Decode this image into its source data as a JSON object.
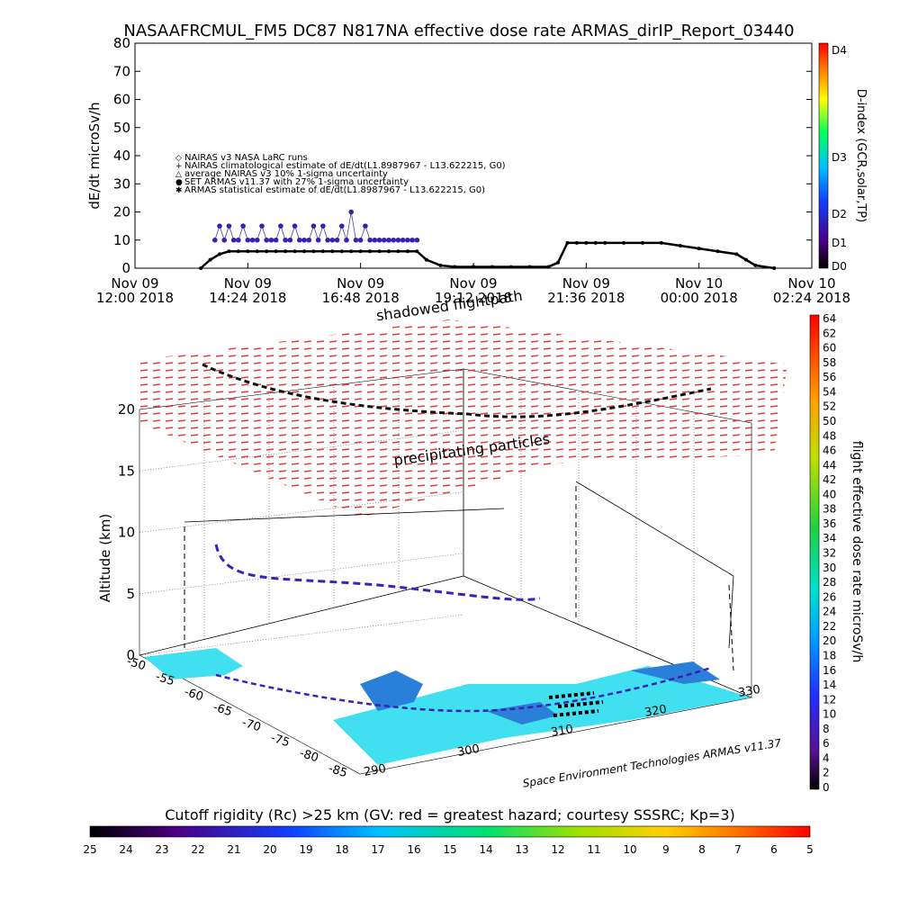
{
  "page": {
    "title": "NASAAFRCMUL_FM5 DC87 N817NA effective dose rate ARMAS_dirIP_Report_03440",
    "credit": "Space Environment Technologies ARMAS v11.37"
  },
  "chart_data": [
    {
      "type": "line",
      "ylabel": "dE/dt microSv/h",
      "ylim": [
        0,
        80
      ],
      "yticks": [
        "80",
        "70",
        "60",
        "50",
        "40",
        "30",
        "20",
        "10",
        "0"
      ],
      "xticks": [
        {
          "line1": "Nov 09",
          "line2": "12:00 2018"
        },
        {
          "line1": "Nov 09",
          "line2": "14:24 2018"
        },
        {
          "line1": "Nov 09",
          "line2": "16:48 2018"
        },
        {
          "line1": "Nov 09",
          "line2": "19:12 2018"
        },
        {
          "line1": "Nov 09",
          "line2": "21:36 2018"
        },
        {
          "line1": "Nov 10",
          "line2": "00:00 2018"
        },
        {
          "line1": "Nov 10",
          "line2": "02:24 2018"
        }
      ],
      "legend": [
        {
          "symbol": "◇",
          "text": "NAIRAS v3 NASA LaRC runs"
        },
        {
          "symbol": "+",
          "text": "NAIRAS climatological estimate of dE/dt(L1.8987967 - L13.622215, G0)"
        },
        {
          "symbol": "△",
          "text": "average NAIRAS v3 10% 1-sigma uncertainty"
        },
        {
          "symbol": "●",
          "text": "SET ARMAS v11.37 with 27% 1-sigma uncertainty"
        },
        {
          "symbol": "✱",
          "text": "ARMAS statistical estimate of dE/dt(L1.8987967 - L13.622215, G0)"
        }
      ],
      "d_index": {
        "label": "D-index (GCR,solar,TP)",
        "ticks": [
          "D4",
          "D3",
          "D2",
          "D1",
          "D0"
        ]
      },
      "series": [
        {
          "name": "SET ARMAS v11.37 with 27% 1-sigma uncertainty",
          "x": [
            1.7,
            1.8,
            1.9,
            2.0,
            2.1,
            2.2,
            2.3,
            2.4,
            2.5,
            2.6,
            2.7,
            2.8,
            2.9,
            3.0,
            3.1,
            3.2,
            3.3,
            3.4,
            3.5,
            3.6,
            3.7,
            3.8,
            3.9,
            4.0,
            4.1,
            4.2,
            4.3,
            4.4,
            4.5,
            4.6,
            4.7,
            4.8,
            4.9,
            5.0,
            5.1,
            5.2,
            5.3,
            5.4,
            5.5,
            5.6,
            5.7,
            5.8,
            5.9,
            6.0
          ],
          "y": [
            10,
            15,
            10,
            15,
            10,
            10,
            15,
            10,
            10,
            10,
            15,
            10,
            10,
            10,
            15,
            10,
            10,
            15,
            10,
            10,
            10,
            15,
            10,
            15,
            10,
            10,
            10,
            15,
            10,
            20,
            10,
            10,
            15,
            10,
            10,
            10,
            10,
            10,
            10,
            10,
            10,
            10,
            10,
            10
          ]
        },
        {
          "name": "ARMAS statistical estimate of dE/dt(L1.8987967 - L13.622215, G0)",
          "x": [
            1.4,
            1.6,
            1.8,
            2.0,
            2.2,
            2.4,
            2.6,
            2.8,
            3.0,
            3.2,
            3.4,
            3.6,
            3.8,
            4.0,
            4.2,
            4.4,
            4.6,
            4.8,
            5.0,
            5.2,
            5.4,
            5.6,
            5.8,
            6.0,
            6.2,
            6.5,
            6.8,
            7.2,
            7.6,
            8.0,
            8.4,
            8.8,
            9.0,
            9.2,
            9.4,
            9.6,
            9.8,
            10.0,
            10.4,
            10.8,
            11.2,
            11.6,
            12.0,
            12.4,
            12.8,
            13.0,
            13.2,
            13.6
          ],
          "y": [
            0,
            3,
            5,
            6,
            6,
            6,
            6,
            6,
            6,
            6,
            6,
            6,
            6,
            6,
            6,
            6,
            6,
            6,
            6,
            6,
            6,
            6,
            6,
            6,
            3,
            1,
            0.5,
            0.5,
            0.5,
            0.5,
            0.5,
            0.5,
            2,
            9,
            9,
            9,
            9,
            9,
            9,
            9,
            9,
            8,
            7,
            6,
            5,
            3,
            1,
            0
          ]
        }
      ]
    },
    {
      "type": "scatter",
      "title_upper": "shadowed flightpath",
      "title_lower": "precipitating particles",
      "zlabel": "Altitude (km)",
      "zticks": [
        "20",
        "15",
        "10",
        "5",
        "0"
      ],
      "lat_ticks": [
        "-50",
        "-55",
        "-60",
        "-65",
        "-70",
        "-75",
        "-80",
        "-85"
      ],
      "lon_ticks": [
        "290",
        "300",
        "310",
        "320",
        "330"
      ],
      "colorbar_right": {
        "label": "flight effective dose rate microSv/h",
        "ticks": [
          "64",
          "62",
          "60",
          "58",
          "56",
          "54",
          "52",
          "50",
          "48",
          "46",
          "44",
          "42",
          "40",
          "38",
          "36",
          "34",
          "32",
          "30",
          "28",
          "26",
          "24",
          "22",
          "20",
          "18",
          "16",
          "14",
          "12",
          "10",
          "8",
          "6",
          "4",
          "2",
          "0"
        ]
      },
      "colorbar_bottom": {
        "label": "Cutoff rigidity (Rc) >25 km (GV: red = greatest hazard; courtesy SSSRC; Kp=3)",
        "ticks": [
          "25",
          "24",
          "23",
          "22",
          "21",
          "20",
          "19",
          "18",
          "17",
          "16",
          "15",
          "14",
          "13",
          "12",
          "11",
          "10",
          "9",
          "8",
          "7",
          "6",
          "5"
        ]
      }
    }
  ]
}
